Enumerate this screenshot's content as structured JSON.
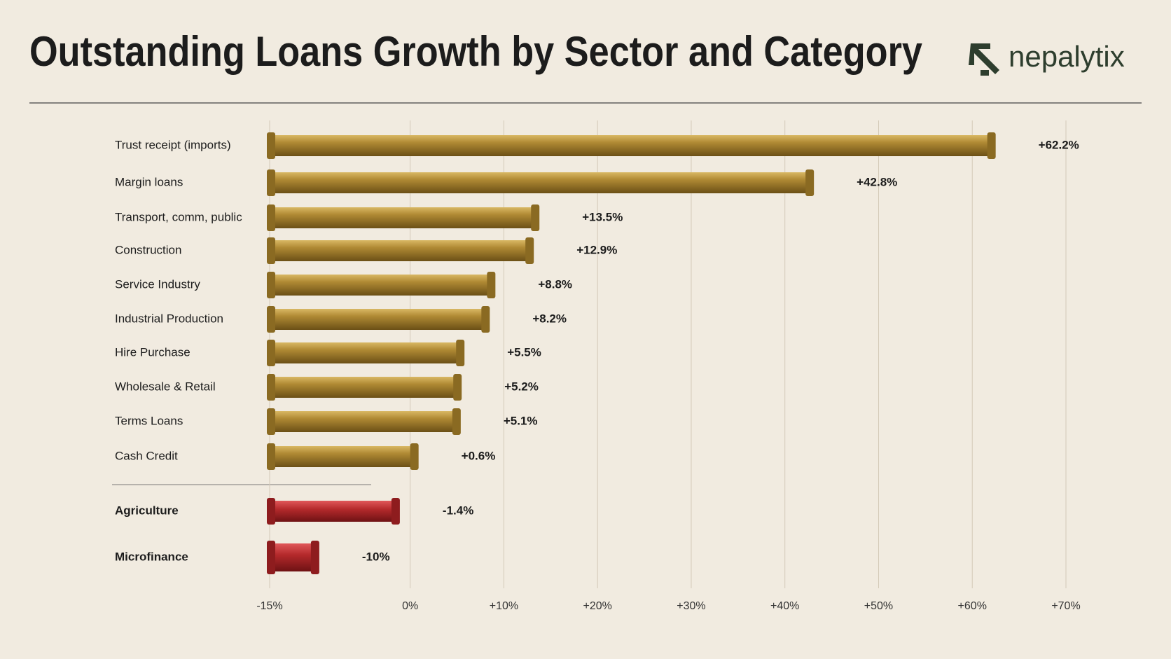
{
  "brand": "nepalytix",
  "chart_data": {
    "type": "bar",
    "orientation": "horizontal",
    "title": "Outstanding Loans Growth by Sector and Category",
    "categories": [
      "Trust receipt (imports)",
      "Margin loans",
      "Transport, comm, public",
      "Construction",
      "Service Industry",
      "Industrial Production",
      "Hire Purchase",
      "Wholesale & Retail",
      "Terms Loans",
      "Cash Credit",
      "Agriculture",
      "Microfinance"
    ],
    "values": [
      62.2,
      42.8,
      13.5,
      12.9,
      8.8,
      8.2,
      5.5,
      5.2,
      5.1,
      0.6,
      -1.4,
      -10
    ],
    "value_labels": [
      "+62.2%",
      "+42.8%",
      "+13.5%",
      "+12.9%",
      "+8.8%",
      "+8.2%",
      "+5.5%",
      "+5.2%",
      "+5.1%",
      "+0.6%",
      "-1.4%",
      "-10%"
    ],
    "colors": [
      "#a8852c",
      "#a8852c",
      "#a8852c",
      "#a8852c",
      "#a8852c",
      "#a8852c",
      "#a8852c",
      "#a8852c",
      "#a8852c",
      "#a8852c",
      "#b02a2a",
      "#b02a2a"
    ],
    "xlim": [
      -15,
      70
    ],
    "xticks": [
      {
        "value": -15,
        "label": "-15%"
      },
      {
        "value": 0,
        "label": "0%"
      },
      {
        "value": 10,
        "label": "+10%"
      },
      {
        "value": 20,
        "label": "+20%"
      },
      {
        "value": 30,
        "label": "+30%"
      },
      {
        "value": 40,
        "label": "+40%"
      },
      {
        "value": 50,
        "label": "+50%"
      },
      {
        "value": 60,
        "label": "+60%"
      },
      {
        "value": 70,
        "label": "+70%"
      }
    ],
    "grid": true
  }
}
